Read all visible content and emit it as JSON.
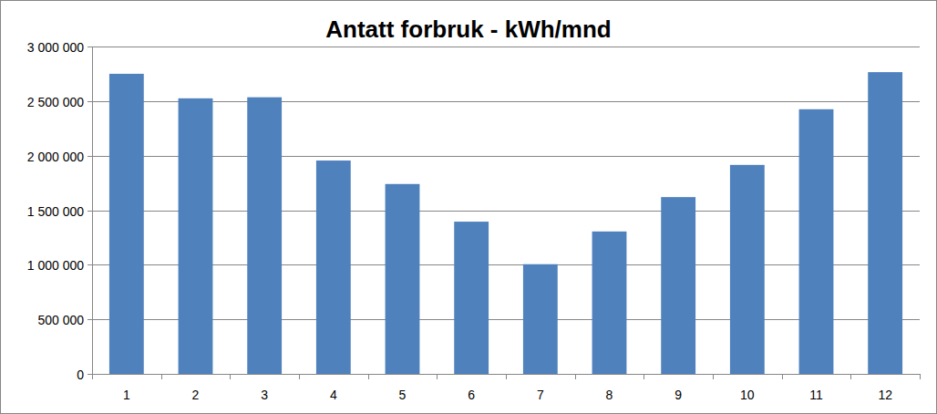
{
  "chart_data": {
    "type": "bar",
    "title": "Antatt forbruk - kWh/mnd",
    "categories": [
      "1",
      "2",
      "3",
      "4",
      "5",
      "6",
      "7",
      "8",
      "9",
      "10",
      "11",
      "12"
    ],
    "values": [
      2750000,
      2525000,
      2535000,
      1955000,
      1740000,
      1395000,
      1005000,
      1305000,
      1620000,
      1915000,
      2425000,
      2765000
    ],
    "color": "#4f81bd",
    "ylim": [
      0,
      3000000
    ],
    "yticks": [
      0,
      {
        "value": 500000,
        "label": "500 000"
      },
      {
        "value": 1000000,
        "label": "1 000 000"
      },
      {
        "value": 1500000,
        "label": "1 500 000"
      },
      {
        "value": 2000000,
        "label": "2 000 000"
      },
      {
        "value": 2500000,
        "label": "2 500 000"
      },
      {
        "value": 3000000,
        "label": "3 000 000"
      }
    ],
    "grid": true
  }
}
